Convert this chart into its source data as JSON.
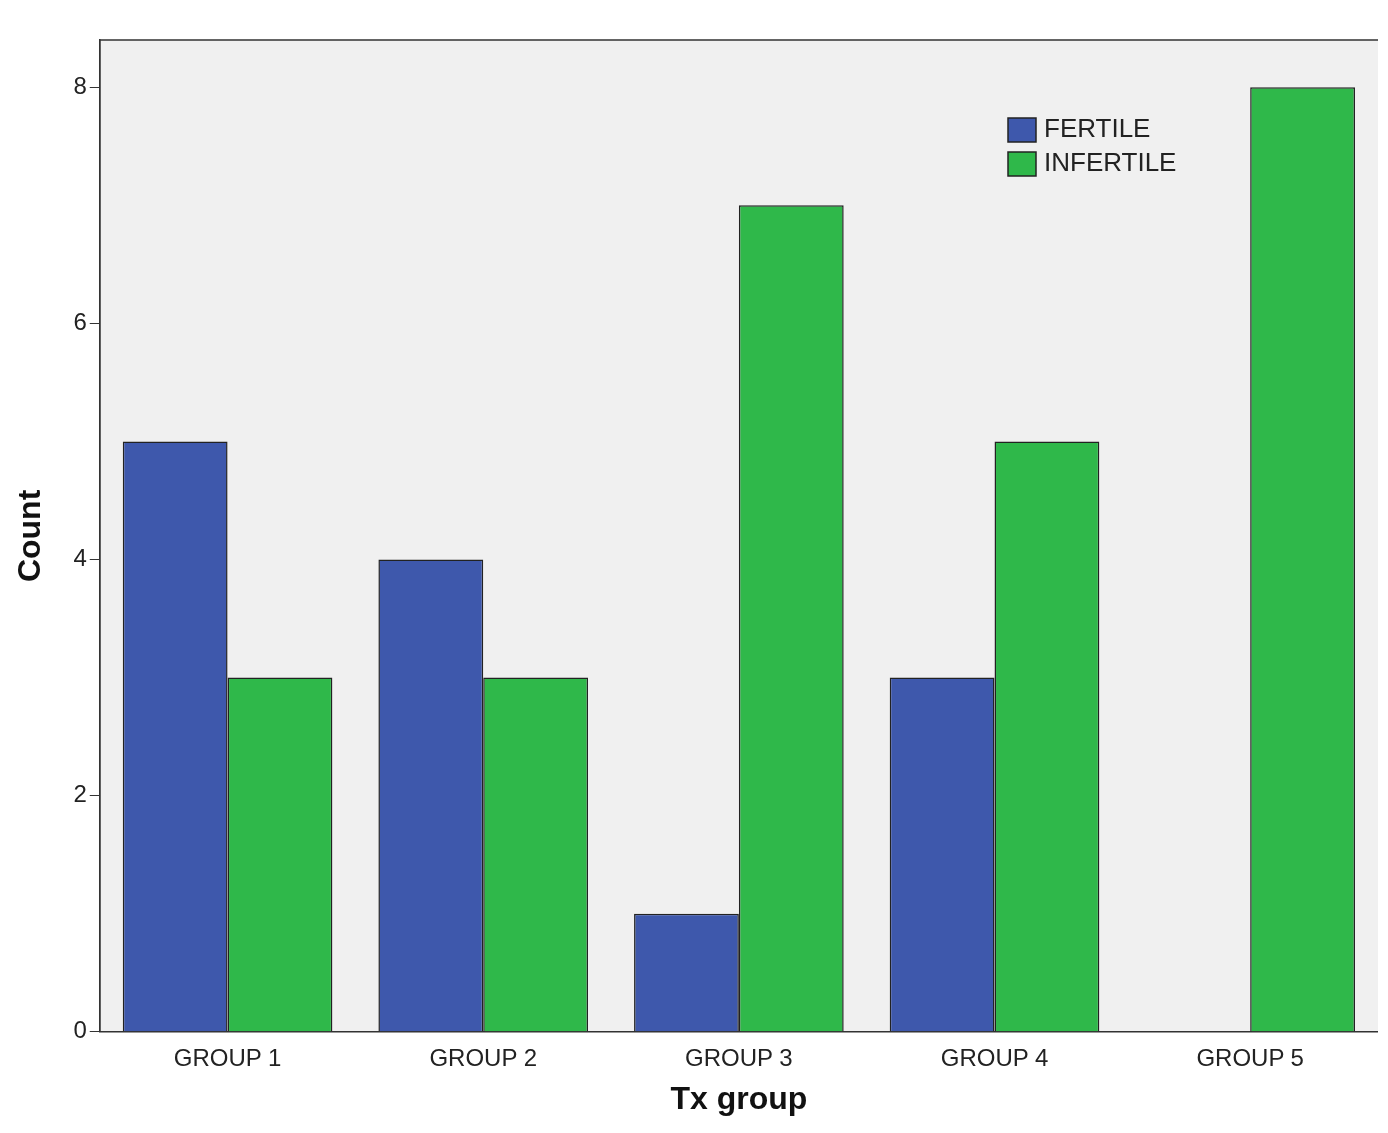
{
  "chart_data": {
    "type": "bar",
    "xlabel": "Tx group",
    "ylabel": "Count",
    "categories": [
      "GROUP 1",
      "GROUP 2",
      "GROUP 3",
      "GROUP 4",
      "GROUP 5"
    ],
    "series": [
      {
        "name": "FERTILE",
        "color": "#3e58ac",
        "values": [
          5,
          4,
          1,
          3,
          0
        ]
      },
      {
        "name": "INFERTILE",
        "color": "#2fb84a",
        "values": [
          3,
          3,
          7,
          5,
          8
        ]
      }
    ],
    "ylim": [
      0,
      8.4
    ],
    "yticks": [
      0,
      2,
      4,
      6,
      8
    ],
    "grid": false,
    "legend": "top right"
  }
}
